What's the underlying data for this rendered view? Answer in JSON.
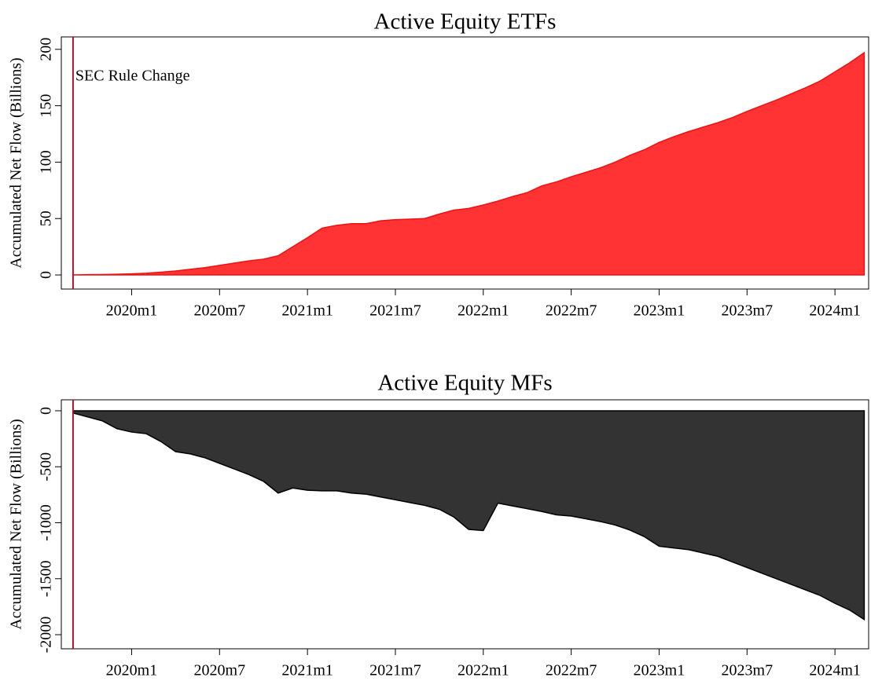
{
  "chart_data": [
    {
      "type": "area",
      "title": "Active Equity ETFs",
      "ylabel": "Accumulated Net Flow (Billions)",
      "x": [
        716,
        717,
        718,
        719,
        720,
        721,
        722,
        723,
        724,
        725,
        726,
        727,
        728,
        729,
        730,
        731,
        732,
        733,
        734,
        735,
        736,
        737,
        738,
        739,
        740,
        741,
        742,
        743,
        744,
        745,
        746,
        747,
        748,
        749,
        750,
        751,
        752,
        753,
        754,
        755,
        756,
        757,
        758,
        759,
        760,
        761,
        762,
        763,
        764,
        765,
        766,
        767,
        768,
        769,
        770
      ],
      "series": [
        {
          "name": "Active Equity ETFs",
          "color": "#ff3333",
          "stroke": "#ee1111",
          "values": [
            0,
            0.3,
            0.4,
            0.6,
            1,
            1.5,
            2.5,
            3.5,
            5,
            6.5,
            8.5,
            10.5,
            12.5,
            14,
            17,
            25,
            33,
            41.5,
            44,
            45.5,
            45.5,
            48,
            49,
            49.5,
            50,
            54,
            57.5,
            59,
            62,
            65.5,
            69.5,
            73,
            79,
            82.5,
            87,
            91,
            95,
            100,
            106,
            111,
            117.5,
            122.5,
            127,
            131,
            135,
            139.5,
            145,
            150,
            155,
            160.5,
            166,
            172,
            180,
            188,
            197
          ]
        }
      ],
      "xlim": [
        715.2,
        770.3
      ],
      "xticks": [
        {
          "value": 720,
          "label": "2020m1"
        },
        {
          "value": 726,
          "label": "2020m7"
        },
        {
          "value": 732,
          "label": "2021m1"
        },
        {
          "value": 738,
          "label": "2021m7"
        },
        {
          "value": 744,
          "label": "2022m1"
        },
        {
          "value": 750,
          "label": "2022m7"
        },
        {
          "value": 756,
          "label": "2023m1"
        },
        {
          "value": 762,
          "label": "2023m7"
        },
        {
          "value": 768,
          "label": "2024m1"
        }
      ],
      "ylim": [
        -12.5,
        211
      ],
      "yticks": [
        0,
        50,
        100,
        150,
        200
      ],
      "vline": {
        "x": 716,
        "color": "#b0102a",
        "label": "SEC Rule Change"
      }
    },
    {
      "type": "area",
      "title": "Active Equity MFs",
      "ylabel": "Accumulated Net Flow (Billions)",
      "x": [
        716,
        717,
        718,
        719,
        720,
        721,
        722,
        723,
        724,
        725,
        726,
        727,
        728,
        729,
        730,
        731,
        732,
        733,
        734,
        735,
        736,
        737,
        738,
        739,
        740,
        741,
        742,
        743,
        744,
        745,
        746,
        747,
        748,
        749,
        750,
        751,
        752,
        753,
        754,
        755,
        756,
        757,
        758,
        759,
        760,
        761,
        762,
        763,
        764,
        765,
        766,
        767,
        768,
        769,
        770
      ],
      "series": [
        {
          "name": "Active Equity MFs",
          "color": "#333333",
          "stroke": "#000000",
          "values": [
            -20,
            -55,
            -90,
            -160,
            -190,
            -205,
            -275,
            -365,
            -385,
            -420,
            -470,
            -520,
            -570,
            -630,
            -735,
            -690,
            -710,
            -715,
            -715,
            -735,
            -745,
            -770,
            -795,
            -820,
            -845,
            -880,
            -950,
            -1060,
            -1070,
            -825,
            -850,
            -875,
            -900,
            -930,
            -940,
            -965,
            -990,
            -1020,
            -1065,
            -1125,
            -1210,
            -1225,
            -1240,
            -1270,
            -1300,
            -1350,
            -1400,
            -1450,
            -1500,
            -1550,
            -1600,
            -1650,
            -1720,
            -1780,
            -1865
          ]
        }
      ],
      "xlim": [
        715.2,
        770.3
      ],
      "xticks": [
        {
          "value": 720,
          "label": "2020m1"
        },
        {
          "value": 726,
          "label": "2020m7"
        },
        {
          "value": 732,
          "label": "2021m1"
        },
        {
          "value": 738,
          "label": "2021m7"
        },
        {
          "value": 744,
          "label": "2022m1"
        },
        {
          "value": 750,
          "label": "2022m7"
        },
        {
          "value": 756,
          "label": "2023m1"
        },
        {
          "value": 762,
          "label": "2023m7"
        },
        {
          "value": 768,
          "label": "2024m1"
        }
      ],
      "ylim": [
        -2126,
        98
      ],
      "yticks": [
        0,
        -500,
        -1000,
        -1500,
        -2000
      ],
      "vline": {
        "x": 716,
        "color": "#b0102a"
      }
    }
  ]
}
